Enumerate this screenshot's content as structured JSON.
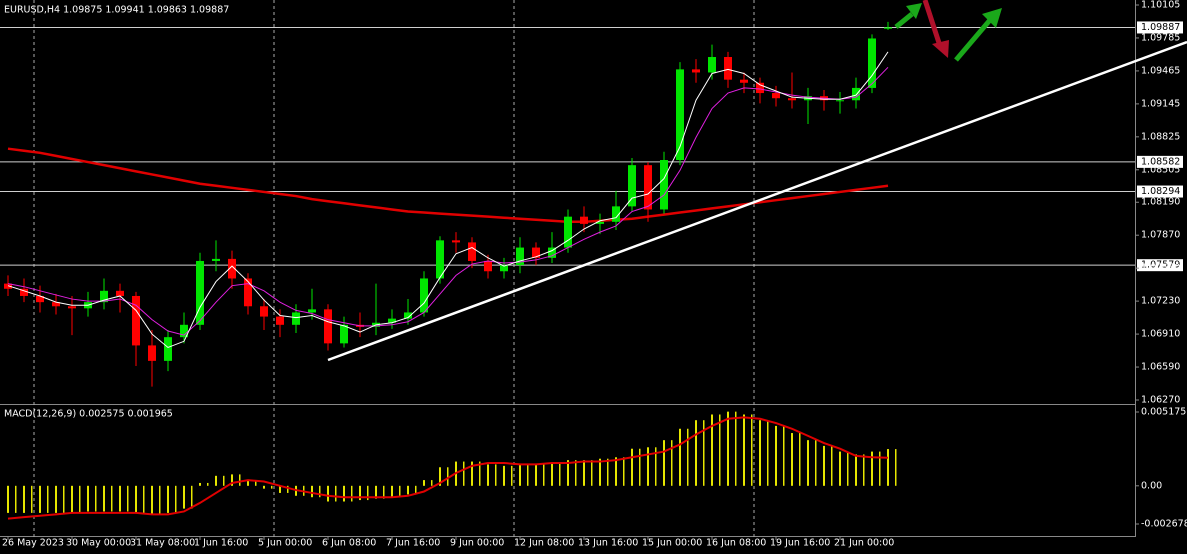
{
  "chart_data": [
    {
      "type": "candlestick",
      "title": "EURUSD,H4  1.09875 1.09941 1.09863 1.09887",
      "categories": [
        "26 May 2023",
        null,
        null,
        null,
        "30 May 00:00",
        null,
        null,
        null,
        "31 May 08:00",
        null,
        null,
        null,
        "1 Jun 16:00",
        null,
        null,
        null,
        "5 Jun 00:00",
        null,
        null,
        null,
        "6 Jun 08:00",
        null,
        null,
        null,
        "7 Jun 16:00",
        null,
        null,
        null,
        "9 Jun 00:00",
        null,
        null,
        null,
        "12 Jun 08:00",
        null,
        null,
        null,
        "13 Jun 16:00",
        null,
        null,
        null,
        "15 Jun 00:00",
        null,
        null,
        null,
        "16 Jun 08:00",
        null,
        null,
        null,
        "19 Jun 16:00",
        null,
        null,
        null,
        "21 Jun 00:00",
        null,
        null,
        null
      ],
      "open": [
        1.074,
        1.0735,
        1.0728,
        1.0722,
        1.0718,
        1.0716,
        1.0722,
        1.0733,
        1.0728,
        1.068,
        1.0665,
        1.0688,
        1.07,
        1.0762,
        1.0764,
        1.0745,
        1.0718,
        1.0708,
        1.07,
        1.0712,
        1.0715,
        1.0682,
        1.07,
        1.0698,
        1.0702,
        1.0706,
        1.0712,
        1.0745,
        1.0782,
        1.078,
        1.0762,
        1.0752,
        1.0758,
        1.0775,
        1.0765,
        1.0775,
        1.0805,
        1.0798,
        1.08,
        1.0815,
        1.0855,
        1.0812,
        1.086,
        1.0948,
        1.0945,
        1.096,
        1.0938,
        1.0935,
        1.0925,
        1.092,
        1.0918,
        1.0922,
        1.0918,
        1.0918,
        1.093,
        1.09875
      ],
      "high": [
        1.0748,
        1.0745,
        1.0738,
        1.073,
        1.0728,
        1.0732,
        1.0745,
        1.074,
        1.0732,
        1.0695,
        1.0695,
        1.0712,
        1.077,
        1.0782,
        1.0772,
        1.075,
        1.0725,
        1.0715,
        1.072,
        1.0735,
        1.072,
        1.0708,
        1.0712,
        1.074,
        1.0715,
        1.0725,
        1.0752,
        1.0786,
        1.079,
        1.0785,
        1.0768,
        1.0765,
        1.0785,
        1.078,
        1.079,
        1.0812,
        1.0815,
        1.0808,
        1.083,
        1.0862,
        1.0858,
        1.0868,
        1.0955,
        1.0958,
        1.0972,
        1.0965,
        1.0945,
        1.094,
        1.0932,
        1.0945,
        1.093,
        1.0928,
        1.0926,
        1.094,
        1.0982,
        1.09941
      ],
      "low": [
        1.0728,
        1.0722,
        1.0712,
        1.071,
        1.069,
        1.0708,
        1.0715,
        1.0712,
        1.066,
        1.064,
        1.0655,
        1.0682,
        1.0695,
        1.0752,
        1.0735,
        1.071,
        1.0695,
        1.0688,
        1.0692,
        1.0705,
        1.0675,
        1.0678,
        1.0688,
        1.069,
        1.0696,
        1.07,
        1.0708,
        1.074,
        1.077,
        1.0755,
        1.0745,
        1.0745,
        1.075,
        1.0758,
        1.076,
        1.077,
        1.079,
        1.0788,
        1.0792,
        1.081,
        1.08,
        1.0808,
        1.0855,
        1.0935,
        1.0938,
        1.093,
        1.0925,
        1.0915,
        1.0912,
        1.091,
        1.0895,
        1.0908,
        1.0905,
        1.091,
        1.0925,
        1.09863
      ],
      "close": [
        1.0735,
        1.0728,
        1.0722,
        1.0718,
        1.0716,
        1.0722,
        1.0733,
        1.0728,
        1.068,
        1.0665,
        1.0688,
        1.07,
        1.0762,
        1.0764,
        1.0745,
        1.0718,
        1.0708,
        1.07,
        1.0712,
        1.0715,
        1.0682,
        1.07,
        1.0698,
        1.0702,
        1.0706,
        1.0712,
        1.0745,
        1.0782,
        1.078,
        1.0762,
        1.0752,
        1.0758,
        1.0775,
        1.0765,
        1.0775,
        1.0805,
        1.0798,
        1.08,
        1.0815,
        1.0855,
        1.0812,
        1.086,
        1.0948,
        1.0945,
        1.096,
        1.0938,
        1.0935,
        1.0925,
        1.092,
        1.0918,
        1.0922,
        1.0918,
        1.0918,
        1.093,
        1.0978,
        1.09887
      ],
      "up_color": "#00e600",
      "down_color": "#ff0000",
      "series": [
        {
          "color": "#e00000",
          "values": [
            1.0871,
            1.0869,
            1.0867,
            1.0864,
            1.0861,
            1.0858,
            1.0855,
            1.0852,
            1.0849,
            1.0846,
            1.0843,
            1.084,
            1.0837,
            1.0835,
            1.0833,
            1.0831,
            1.0829,
            1.0827,
            1.0825,
            1.0822,
            1.082,
            1.0818,
            1.0816,
            1.0814,
            1.0812,
            1.081,
            1.0809,
            1.0808,
            1.0807,
            1.0806,
            1.0805,
            1.0804,
            1.0803,
            1.0802,
            1.0801,
            1.08,
            1.08,
            1.0801,
            1.0802,
            1.0803,
            1.0805,
            1.0807,
            1.0809,
            1.0811,
            1.0813,
            1.0815,
            1.0817,
            1.0819,
            1.0821,
            1.0823,
            1.0825,
            1.0827,
            1.0829,
            1.0831,
            1.0833,
            1.0835
          ]
        },
        {
          "color": "#e020e0",
          "values": [
            1.074,
            1.0737,
            1.0733,
            1.0729,
            1.0725,
            1.0723,
            1.0723,
            1.0725,
            1.0719,
            1.0705,
            1.0694,
            1.069,
            1.0704,
            1.0722,
            1.0738,
            1.074,
            1.0733,
            1.0722,
            1.0714,
            1.0711,
            1.0705,
            1.0702,
            1.0699,
            1.0699,
            1.07,
            1.0703,
            1.0712,
            1.073,
            1.0748,
            1.0759,
            1.0762,
            1.076,
            1.0761,
            1.0763,
            1.0767,
            1.0775,
            1.0783,
            1.079,
            1.0796,
            1.081,
            1.0815,
            1.0826,
            1.085,
            1.0882,
            1.091,
            1.0925,
            1.093,
            1.0929,
            1.0926,
            1.0923,
            1.0921,
            1.092,
            1.0919,
            1.0921,
            1.0934,
            1.095
          ]
        },
        {
          "color": "#ffffff",
          "values": [
            1.0738,
            1.0733,
            1.0728,
            1.0722,
            1.0719,
            1.0719,
            1.0724,
            1.0728,
            1.0714,
            1.0691,
            1.0678,
            1.0684,
            1.0717,
            1.0742,
            1.0757,
            1.0742,
            1.0724,
            1.0709,
            1.0707,
            1.0709,
            1.0703,
            1.0699,
            1.0693,
            1.07,
            1.0702,
            1.0707,
            1.0721,
            1.0746,
            1.0769,
            1.0775,
            1.0765,
            1.0757,
            1.0762,
            1.0766,
            1.0772,
            1.0782,
            1.0793,
            1.0801,
            1.0804,
            1.0823,
            1.0827,
            1.0842,
            1.0873,
            1.0918,
            1.0944,
            1.0948,
            1.0944,
            1.0933,
            1.0927,
            1.0921,
            1.092,
            1.0919,
            1.0919,
            1.0923,
            1.0942,
            1.0965
          ]
        }
      ],
      "levels": [
        1.09887,
        1.08582,
        1.08294,
        1.07579
      ],
      "ylim": [
        1.0627,
        1.10105
      ],
      "yticks": [
        1.10105,
        1.09785,
        1.09465,
        1.09145,
        1.08825,
        1.08505,
        {
          "value": 1.0819,
          "label": "1.08190"
        },
        {
          "value": 1.0787,
          "label": "1.07870"
        },
        {
          "value": 1.0755,
          "label": "1.07550"
        },
        {
          "value": 1.0723,
          "label": "1.07230"
        },
        {
          "value": 1.0691,
          "label": "1.06910"
        },
        {
          "value": 1.0659,
          "label": "1.06590"
        },
        {
          "value": 1.0627,
          "label": "1.06270"
        }
      ],
      "grid": true
    },
    {
      "type": "combo",
      "title": "MACD(12,26,9) 0.002575 0.001965",
      "series": [
        {
          "type": "bar",
          "color": "#e6e600",
          "values": [
            -0.0019,
            -0.0019,
            -0.0019,
            -0.0019,
            -0.0019,
            -0.0018,
            -0.0018,
            -0.0018,
            -0.0019,
            -0.002,
            -0.0019,
            -0.0016,
            0.0002,
            0.0007,
            0.0008,
            0.0004,
            -0.0002,
            -0.0005,
            -0.0007,
            -0.0008,
            -0.0011,
            -0.0011,
            -0.001,
            -0.0009,
            -0.0008,
            -0.0006,
            0.0004,
            0.0013,
            0.0017,
            0.0017,
            0.0015,
            0.0014,
            0.0015,
            0.0015,
            0.0016,
            0.0018,
            0.0018,
            0.0019,
            0.002,
            0.0026,
            0.0027,
            0.0032,
            0.004,
            0.0046,
            0.005,
            0.0052,
            0.005,
            0.0046,
            0.0042,
            0.0037,
            0.0032,
            0.0028,
            0.0024,
            0.0022,
            0.0024,
            0.002575
          ]
        },
        {
          "type": "line",
          "color": "#e00000",
          "values": [
            -0.0023,
            -0.0022,
            -0.0021,
            -0.002,
            -0.0019,
            -0.0019,
            -0.0019,
            -0.0019,
            -0.0019,
            -0.002,
            -0.002,
            -0.0018,
            -0.0012,
            -0.0005,
            0.0002,
            0.0004,
            0.0003,
            0.0,
            -0.0003,
            -0.0005,
            -0.0007,
            -0.0008,
            -0.0008,
            -0.0008,
            -0.0008,
            -0.0007,
            -0.0004,
            0.0002,
            0.0009,
            0.0014,
            0.0016,
            0.0016,
            0.0015,
            0.0015,
            0.0016,
            0.0016,
            0.0017,
            0.0017,
            0.0018,
            0.002,
            0.0022,
            0.0024,
            0.0029,
            0.0036,
            0.0042,
            0.0047,
            0.0048,
            0.0047,
            0.0044,
            0.004,
            0.0035,
            0.003,
            0.0026,
            0.0021,
            0.002,
            0.001965
          ]
        }
      ],
      "ylim": [
        -0.002678,
        0.005175
      ],
      "yticks": [
        0.005175,
        {
          "value": 0,
          "label": "0.00"
        },
        -0.002678
      ]
    }
  ]
}
